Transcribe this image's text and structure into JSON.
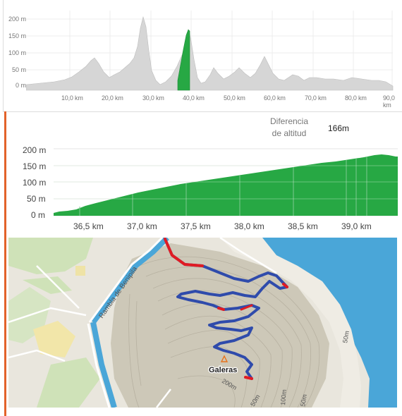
{
  "overview_profile": {
    "y_ticks": [
      "200 m",
      "150 m",
      "100 m",
      "50 m",
      "0 m"
    ],
    "x_ticks": [
      "10,0 km",
      "20,0 km",
      "30,0 km",
      "40,0 km",
      "50,0 km",
      "60,0 km",
      "70,0 km",
      "80,0 km",
      "90,0 km"
    ],
    "highlight_range_km": [
      36.2,
      39.3
    ],
    "colors": {
      "profile": "#d6d6d6",
      "highlight": "#27a844"
    }
  },
  "stats": {
    "elevation_diff_label_line1": "Diferencia",
    "elevation_diff_label_line2": "de altitud",
    "elevation_diff_value": "166m"
  },
  "segment_profile": {
    "y_ticks": [
      "200 m",
      "150 m",
      "100 m",
      "50 m",
      "0 m"
    ],
    "x_ticks": [
      "36,5 km",
      "37,0 km",
      "37,5 km",
      "38,0 km",
      "38,5 km",
      "39,0 km"
    ],
    "color": "#27a844"
  },
  "map": {
    "street_label": "Rambla de Benipila",
    "peak_label": "Galeras",
    "contour_labels": [
      "200m",
      "50m",
      "100m",
      "50m",
      "50m"
    ],
    "colors": {
      "route": "#2f4bab",
      "route_steep": "#e01b23",
      "sea": "#4aa6d8"
    }
  }
}
